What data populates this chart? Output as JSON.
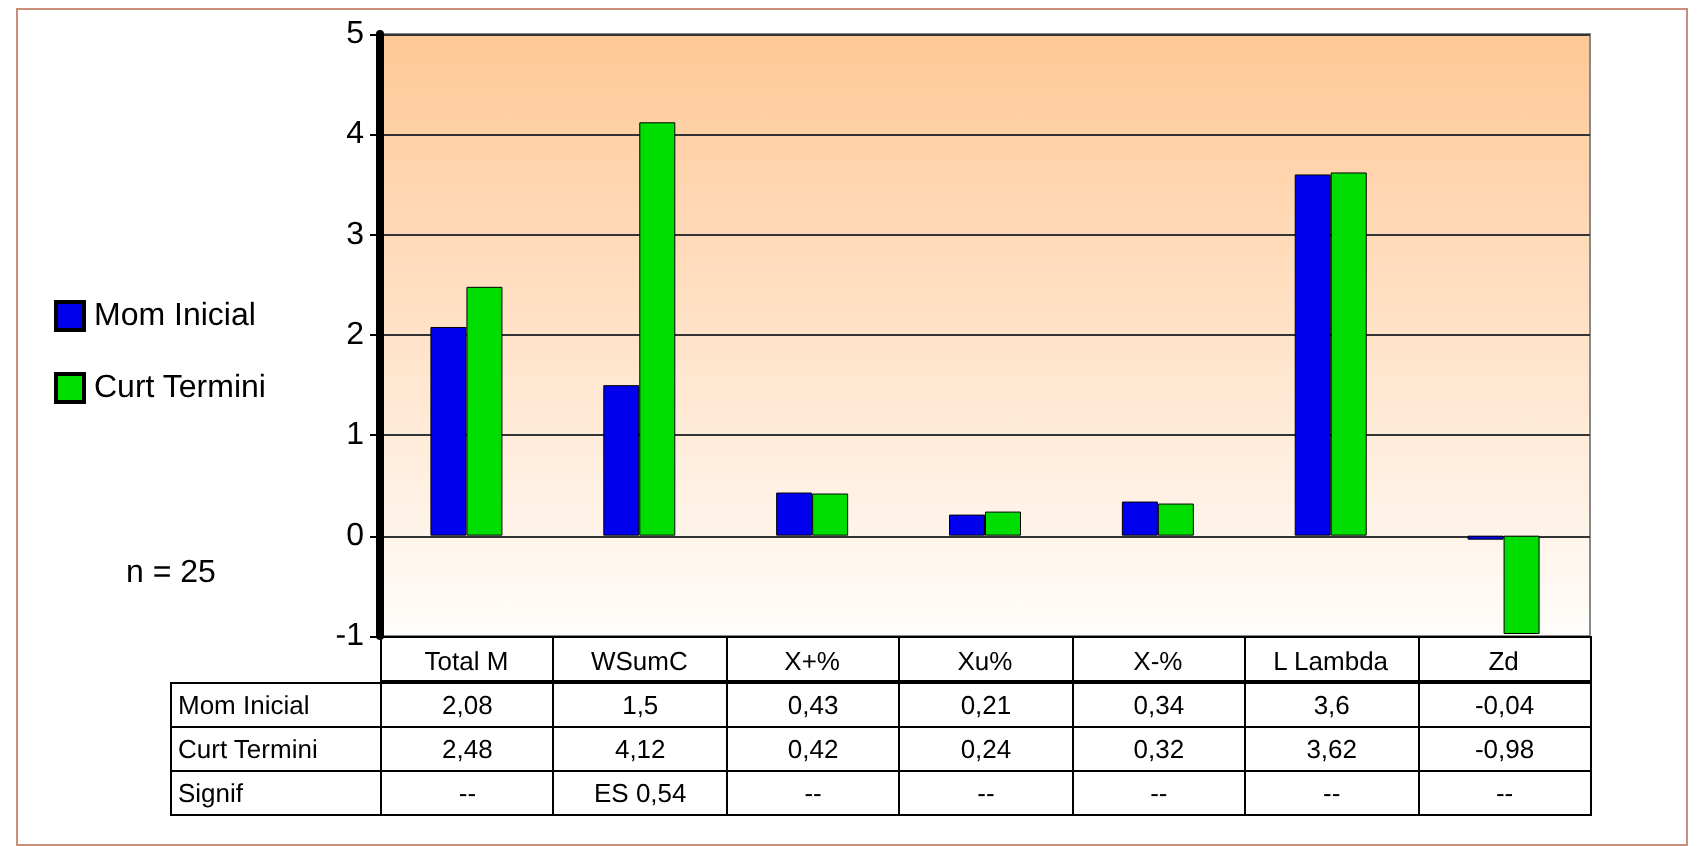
{
  "chart_data": {
    "type": "bar",
    "categories": [
      "Total M",
      "WSumC",
      "X+%",
      "Xu%",
      "X-%",
      "L Lambda",
      "Zd"
    ],
    "series": [
      {
        "name": "Mom Inicial",
        "color": "#0000ee",
        "values": [
          2.08,
          1.5,
          0.43,
          0.21,
          0.34,
          3.6,
          -0.04
        ],
        "value_labels": [
          "2,08",
          "1,5",
          "0,43",
          "0,21",
          "0,34",
          "3,6",
          "-0,04"
        ]
      },
      {
        "name": "Curt Termini",
        "color": "#00dd00",
        "values": [
          2.48,
          4.12,
          0.42,
          0.24,
          0.32,
          3.62,
          -0.98
        ],
        "value_labels": [
          "2,48",
          "4,12",
          "0,42",
          "0,24",
          "0,32",
          "3,62",
          "-0,98"
        ]
      }
    ],
    "ylim": [
      -1,
      5
    ],
    "yticks": [
      -1,
      0,
      1,
      2,
      3,
      4,
      5
    ],
    "grid": "y",
    "legend": "left",
    "annotations": [
      "n = 25",
      "Signif",
      "--",
      "ES 0,54",
      "--",
      "--",
      "--",
      "--",
      "--"
    ]
  }
}
